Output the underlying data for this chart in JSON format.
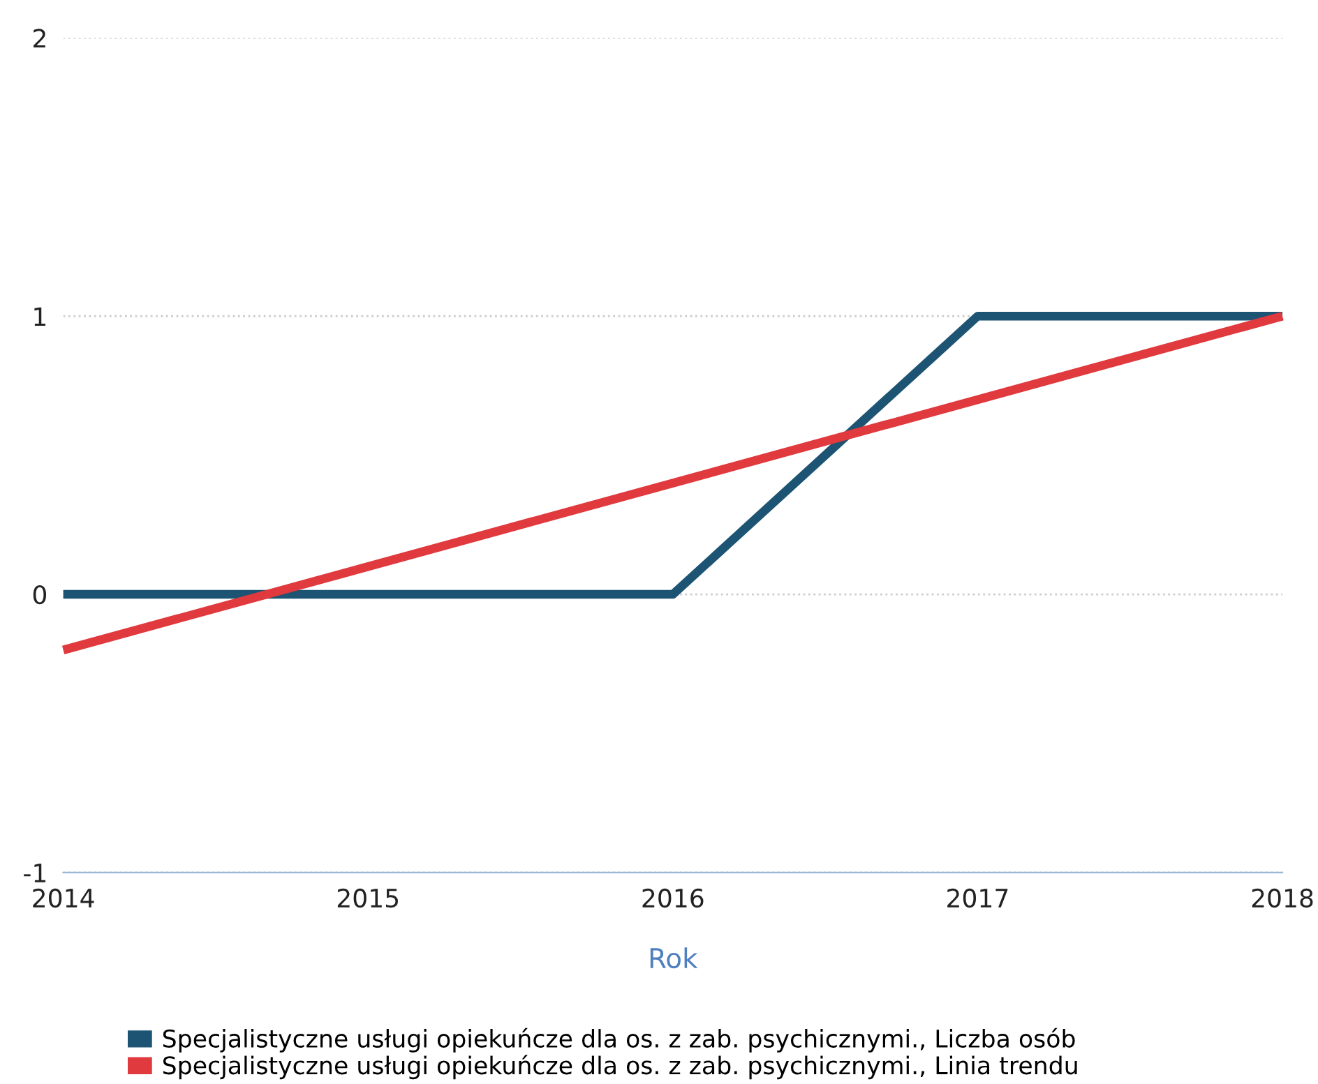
{
  "chart_data": {
    "type": "line",
    "xlabel": "Rok",
    "x": [
      2014,
      2015,
      2016,
      2017,
      2018
    ],
    "series": [
      {
        "name": "Specjalistyczne usługi opiekuńcze dla os. z zab. psychicznymi., Liczba osób",
        "color": "#1d5473",
        "values": [
          0,
          0,
          0,
          1,
          1
        ]
      },
      {
        "name": "Specjalistyczne usługi opiekuńcze dla os. z zab. psychicznymi., Linia trendu",
        "color": "#e0393e",
        "values": [
          -0.2,
          null,
          null,
          null,
          1.0
        ]
      }
    ],
    "xlim": [
      2014,
      2018
    ],
    "xticks": [
      2014,
      2015,
      2016,
      2017,
      2018
    ],
    "ylim": [
      -1,
      2
    ],
    "yticks": [
      -1,
      0,
      1,
      2
    ],
    "grid": "y",
    "legend": "bottom",
    "marker": "none",
    "line_style": "solid"
  }
}
